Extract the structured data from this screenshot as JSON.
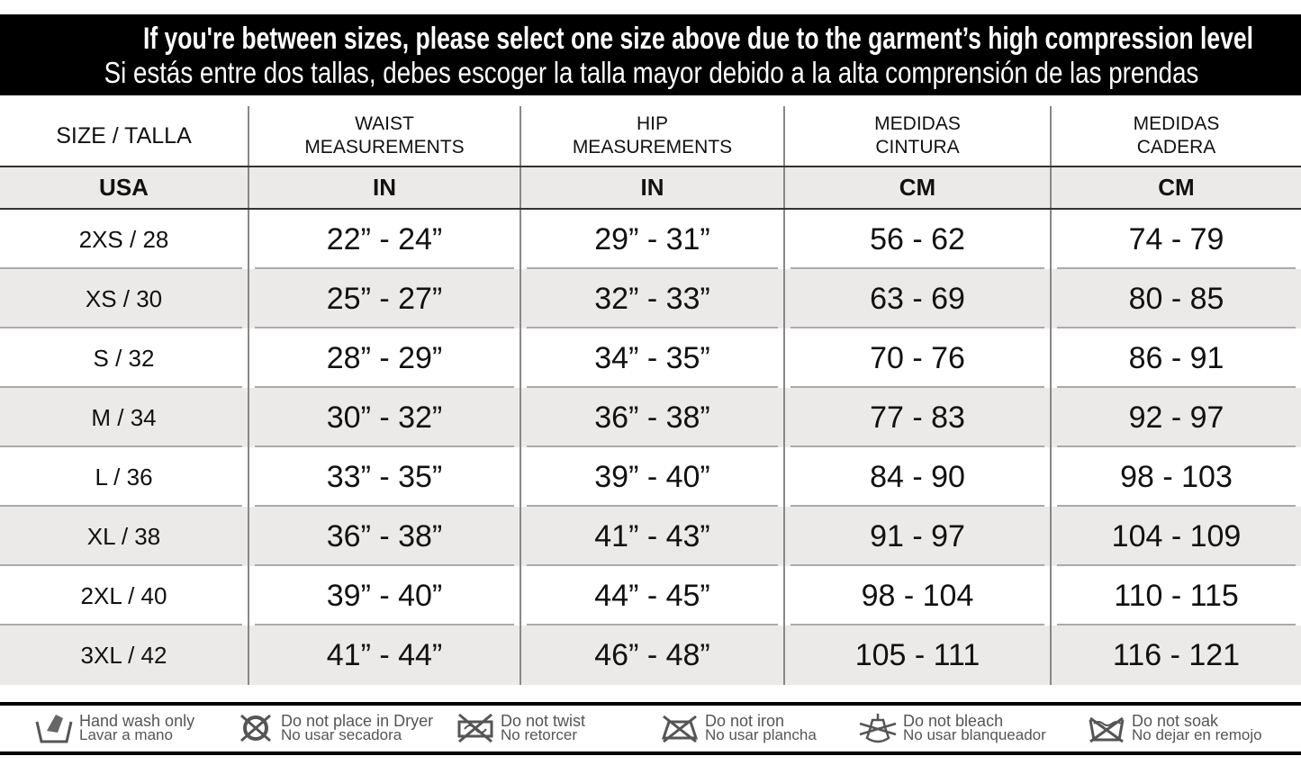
{
  "banner": {
    "line1": "If you're between sizes, please select one size above due to the garment’s high compression level",
    "line2": "Si estás entre dos tallas, debes escoger la talla mayor debido a la alta comprensión de las prendas"
  },
  "headers": [
    "SIZE / TALLA",
    "WAIST\nMEASUREMENTS",
    "HIP\nMEASUREMENTS",
    "MEDIDAS\nCINTURA",
    "MEDIDAS\nCADERA"
  ],
  "units": [
    "USA",
    "IN",
    "IN",
    "CM",
    "CM"
  ],
  "rows": [
    [
      "2XS / 28",
      "22” - 24”",
      "29” - 31”",
      "56 - 62",
      "74 - 79"
    ],
    [
      "XS / 30",
      "25” - 27”",
      "32” - 33”",
      "63 - 69",
      "80 - 85"
    ],
    [
      "S / 32",
      "28” - 29”",
      "34” - 35”",
      "70 - 76",
      "86 - 91"
    ],
    [
      "M / 34",
      "30” - 32”",
      "36” - 38”",
      "77 - 83",
      "92 - 97"
    ],
    [
      "L / 36",
      "33” - 35”",
      "39” - 40”",
      "84 - 90",
      "98 - 103"
    ],
    [
      "XL / 38",
      "36” - 38”",
      "41” - 43”",
      "91 - 97",
      "104 - 109"
    ],
    [
      "2XL / 40",
      "39” - 40”",
      "44” - 45”",
      "98 - 104",
      "110 - 115"
    ],
    [
      "3XL / 42",
      "41” - 44”",
      "46” - 48”",
      "105 - 111",
      "116 - 121"
    ]
  ],
  "care": [
    {
      "icon": "hand-wash-icon",
      "en": "Hand wash only",
      "es": "Lavar a mano"
    },
    {
      "icon": "no-tumble-dry-icon",
      "en": "Do not place in Dryer",
      "es": "No usar secadora"
    },
    {
      "icon": "no-wring-icon",
      "en": "Do not twist",
      "es": "No retorcer"
    },
    {
      "icon": "no-iron-icon",
      "en": "Do not iron",
      "es": "No usar plancha"
    },
    {
      "icon": "no-bleach-icon",
      "en": "Do not bleach",
      "es": "No usar blanqueador"
    },
    {
      "icon": "no-soak-icon",
      "en": "Do not soak",
      "es": "No dejar en remojo"
    }
  ]
}
